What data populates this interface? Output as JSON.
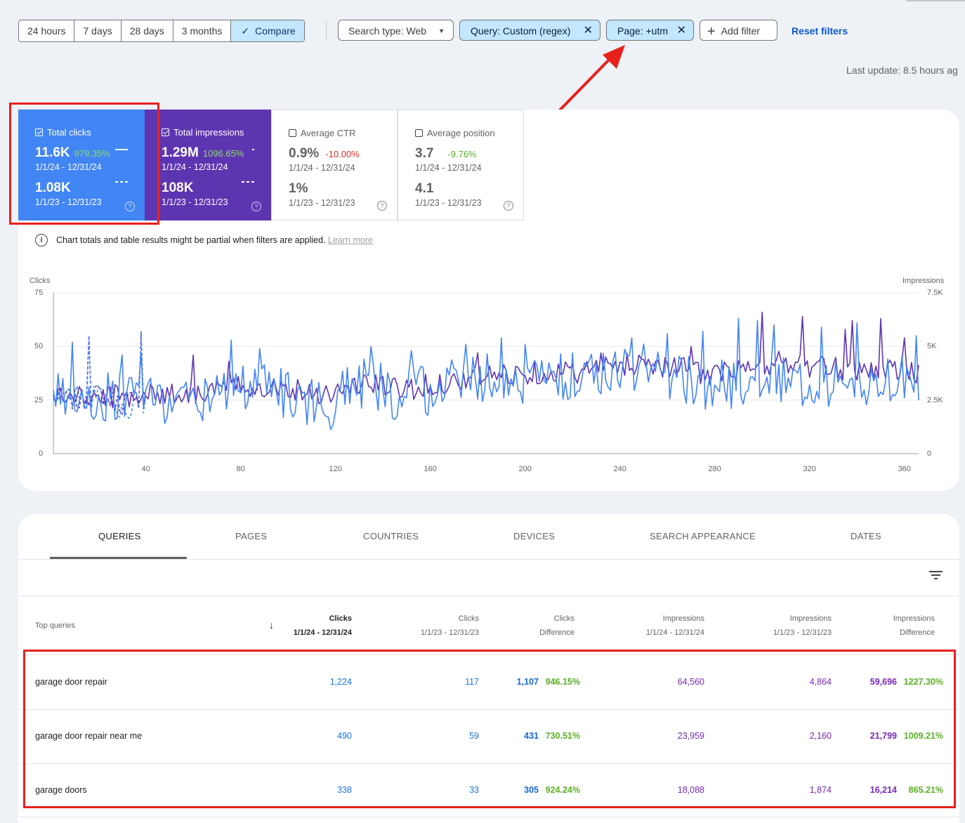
{
  "range_buttons": [
    "24 hours",
    "7 days",
    "28 days",
    "3 months"
  ],
  "compare_button": {
    "label": "Compare",
    "icon": "check-icon"
  },
  "filters": {
    "search_type": "Search type: Web",
    "query": "Query: Custom (regex)",
    "page": "Page: +utm",
    "add_filter": "Add filter",
    "reset": "Reset filters"
  },
  "last_update": "Last update: 8.5 hours ag",
  "metrics": [
    {
      "label": "Total clicks",
      "checked": true,
      "value": "11.6K",
      "change": "979.35%",
      "range1": "1/1/24 - 12/31/24",
      "value2": "1.08K",
      "range2": "1/1/23 - 12/31/23",
      "bg": "#4285f4"
    },
    {
      "label": "Total impressions",
      "checked": true,
      "value": "1.29M",
      "change": "1096.65%",
      "range1": "1/1/24 - 12/31/24",
      "value2": "108K",
      "range2": "1/1/23 - 12/31/23",
      "bg": "#5e35b1"
    },
    {
      "label": "Average CTR",
      "checked": false,
      "value": "0.9%",
      "change": "-10.00%",
      "range1": "1/1/24 - 12/31/24",
      "value2": "1%",
      "range2": "1/1/23 - 12/31/23"
    },
    {
      "label": "Average position",
      "checked": false,
      "value": "3.7",
      "change": "-9.76%",
      "range1": "1/1/24 - 12/31/24",
      "value2": "4.1",
      "range2": "1/1/23 - 12/31/23"
    }
  ],
  "chart_note": "Chart totals and table results might be partial when filters are applied.",
  "learn_more": "Learn more",
  "chart_data": {
    "type": "line",
    "left_axis_label": "Clicks",
    "right_axis_label": "Impressions",
    "left_ticks": [
      "75",
      "50",
      "25",
      "0"
    ],
    "right_ticks": [
      "7.5K",
      "5K",
      "2.5K",
      "0"
    ],
    "x_ticks": [
      "40",
      "80",
      "120",
      "160",
      "200",
      "240",
      "280",
      "320",
      "360"
    ],
    "xlim": [
      1,
      366
    ],
    "ylim_left": [
      0,
      75
    ],
    "ylim_right": [
      0,
      7500
    ],
    "series": [
      {
        "name": "Clicks",
        "color": "#4285f4",
        "baseline": [
          28,
          26,
          27,
          26,
          24,
          28,
          33,
          26,
          23,
          34,
          27,
          30,
          37,
          35,
          34,
          36,
          38,
          40,
          36,
          32,
          33,
          35,
          30,
          32,
          36,
          34
        ],
        "peaks": [
          [
            52,
            9
          ],
          [
            46,
            30
          ],
          [
            47,
            38
          ],
          [
            53,
            76
          ],
          [
            49,
            88
          ],
          [
            50,
            135
          ],
          [
            48,
            152
          ],
          [
            51,
            175
          ],
          [
            54,
            190
          ],
          [
            51,
            200
          ],
          [
            54,
            245
          ],
          [
            56,
            260
          ],
          [
            57,
            275
          ],
          [
            63,
            290
          ],
          [
            62,
            298
          ],
          [
            60,
            305
          ],
          [
            59,
            325
          ],
          [
            61,
            340
          ],
          [
            55,
            365
          ]
        ]
      },
      {
        "name": "Impressions",
        "color": "#5e35b1",
        "baseline": [
          2700,
          2600,
          2700,
          2800,
          2800,
          3000,
          3200,
          3000,
          2800,
          3300,
          3000,
          3200,
          3500,
          3700,
          3800,
          3800,
          4000,
          4300,
          4000,
          3700,
          3900,
          4300,
          4000,
          3900,
          4100,
          3700
        ],
        "peaks": [
          [
            4600,
            60
          ],
          [
            4300,
            75
          ],
          [
            4700,
            180
          ],
          [
            4700,
            232
          ],
          [
            5000,
            270
          ],
          [
            6600,
            300
          ],
          [
            6400,
            317
          ],
          [
            6200,
            338
          ],
          [
            6300,
            350
          ],
          [
            5800,
            335
          ],
          [
            5400,
            360
          ]
        ]
      },
      {
        "name": "Clicks 2023",
        "color": "#4285f4",
        "dashed": true,
        "baseline": [
          24,
          26,
          28,
          25,
          27,
          22,
          20,
          24,
          25
        ],
        "peaks": [
          [
            55,
            16
          ],
          [
            57,
            38
          ]
        ]
      },
      {
        "name": "Impressions 2023",
        "color": "#5e35b1",
        "dashed": true,
        "baseline": [
          2500,
          2700,
          2400,
          2600,
          2800,
          2500,
          2300,
          2600,
          2500
        ],
        "peaks": [
          [
            5500,
            16
          ],
          [
            5700,
            38
          ]
        ]
      }
    ]
  },
  "tabs": [
    "QUERIES",
    "PAGES",
    "COUNTRIES",
    "DEVICES",
    "SEARCH APPEARANCE",
    "DATES"
  ],
  "table": {
    "first_header": "Top queries",
    "columns": [
      {
        "title": "Clicks",
        "sub": "1/1/24 - 12/31/24"
      },
      {
        "title": "Clicks",
        "sub": "1/1/23 - 12/31/23"
      },
      {
        "title": "Clicks",
        "sub": "Difference"
      },
      {
        "title": "Impressions",
        "sub": "1/1/24 - 12/31/24"
      },
      {
        "title": "Impressions",
        "sub": "1/1/23 - 12/31/23"
      },
      {
        "title": "Impressions",
        "sub": "Difference"
      }
    ],
    "rows": [
      {
        "query": "garage door repair",
        "c24": "1,224",
        "c23": "117",
        "cdiff": "1,107",
        "cpct": "946.15%",
        "i24": "64,560",
        "i23": "4,864",
        "idiff": "59,696",
        "ipct": "1227.30%"
      },
      {
        "query": "garage door repair near me",
        "c24": "490",
        "c23": "59",
        "cdiff": "431",
        "cpct": "730.51%",
        "i24": "23,959",
        "i23": "2,160",
        "idiff": "21,799",
        "ipct": "1009.21%"
      },
      {
        "query": "garage doors",
        "c24": "338",
        "c23": "33",
        "cdiff": "305",
        "cpct": "924.24%",
        "i24": "18,088",
        "i23": "1,874",
        "idiff": "16,214",
        "ipct": "865.21%"
      }
    ]
  },
  "colors": {
    "accent_blue": "#4285f4",
    "accent_purple": "#5e35b1",
    "annotation_red": "#e8201a",
    "chip_blue": "#c2e7ff"
  }
}
